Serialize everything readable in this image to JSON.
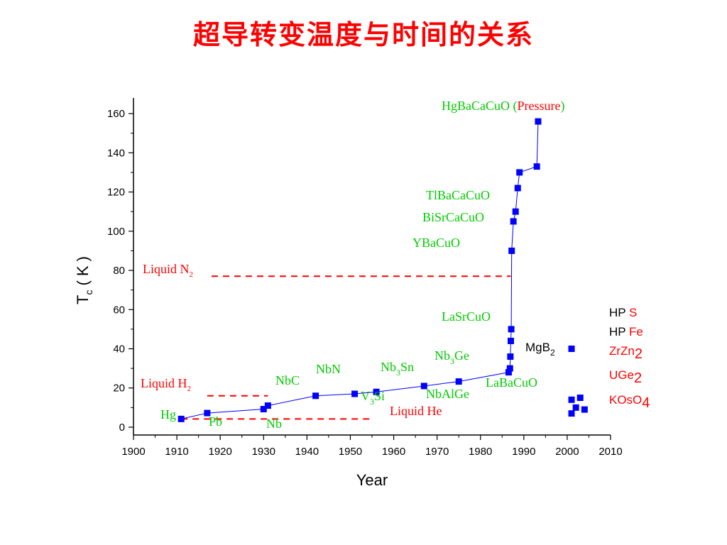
{
  "title": "超导转变温度与时间的关系",
  "colors": {
    "title": "#ff0000",
    "marker": "#0000ff",
    "line": "#0000ff",
    "material_label": "#00cc00",
    "liquid_label": "#ff0000",
    "reference_line": "#ff0000",
    "axis": "#000000"
  },
  "chart_data": {
    "type": "line",
    "xlabel": "Year",
    "ylabel": "T",
    "ylabel_sub": "c",
    "ylabel_unit": "( K )",
    "xlim": [
      1900,
      2010
    ],
    "ylim": [
      -4,
      168
    ],
    "xticks": [
      "1900",
      "1910",
      "1920",
      "1930",
      "1940",
      "1950",
      "1960",
      "1970",
      "1980",
      "1990",
      "2000",
      "2010"
    ],
    "yticks": [
      "0",
      "20",
      "40",
      "60",
      "80",
      "100",
      "120",
      "140",
      "160"
    ],
    "grid": false,
    "legend": "none",
    "series": [
      {
        "points": [
          {
            "x": 1911,
            "y": 4.2
          },
          {
            "x": 1917,
            "y": 7.2
          },
          {
            "x": 1930,
            "y": 9.2
          },
          {
            "x": 1931,
            "y": 11
          },
          {
            "x": 1942,
            "y": 16
          },
          {
            "x": 1951,
            "y": 17
          },
          {
            "x": 1956,
            "y": 18
          },
          {
            "x": 1967,
            "y": 21
          },
          {
            "x": 1975,
            "y": 23.3
          },
          {
            "x": 1986.5,
            "y": 28
          },
          {
            "x": 1986.8,
            "y": 30
          },
          {
            "x": 1986.9,
            "y": 36
          },
          {
            "x": 1987.0,
            "y": 44
          },
          {
            "x": 1987.1,
            "y": 50
          },
          {
            "x": 1987.2,
            "y": 90
          },
          {
            "x": 1987.6,
            "y": 105
          },
          {
            "x": 1988.1,
            "y": 110
          },
          {
            "x": 1988.6,
            "y": 122
          },
          {
            "x": 1989,
            "y": 130
          },
          {
            "x": 1993,
            "y": 133
          },
          {
            "x": 1993.3,
            "y": 156
          }
        ]
      }
    ],
    "extra_points": [
      {
        "x": 2001,
        "y": 40
      },
      {
        "x": 2001,
        "y": 14
      },
      {
        "x": 2002,
        "y": 10
      },
      {
        "x": 2003,
        "y": 15
      },
      {
        "x": 2004,
        "y": 9
      },
      {
        "x": 2001,
        "y": 7
      }
    ],
    "reference_lines": [
      {
        "y": 77,
        "x_from": 1918,
        "x_to": 1987,
        "label": "Liquid N",
        "sub": "2"
      },
      {
        "y": 16,
        "x_from": 1917,
        "x_to": 1931,
        "label": "Liquid H",
        "sub": "2"
      },
      {
        "y": 4.2,
        "x_from": 1911,
        "x_to": 1955,
        "label": "Liquid He",
        "sub": ""
      }
    ],
    "material_labels": [
      {
        "text": "HgBaCaCuO (",
        "accent": "Pressure",
        "tail": ")"
      },
      {
        "text": "TlBaCaCuO"
      },
      {
        "text": "BiSrCaCuO"
      },
      {
        "text": "YBaCuO"
      },
      {
        "text": "LaSrCuO"
      },
      {
        "text": "LaBaCuO"
      },
      {
        "text": "NbAlGe"
      },
      {
        "text": "Nb",
        "sub": "3",
        "tail": "Ge"
      },
      {
        "text": "Nb",
        "sub": "3",
        "tail": "Sn"
      },
      {
        "text": "V",
        "sub": "3",
        "tail": "Si"
      },
      {
        "text": "NbN"
      },
      {
        "text": "NbC"
      },
      {
        "text": "Hg"
      },
      {
        "text": "Pb"
      },
      {
        "text": "Nb"
      }
    ],
    "mgb2_label": {
      "text": "MgB",
      "sub": "2"
    },
    "recent_labels": [
      {
        "prefix": "HP ",
        "accent": "S"
      },
      {
        "prefix": "HP ",
        "accent": "Fe"
      },
      {
        "prefix": "",
        "accent": "ZrZn",
        "sub": "2"
      },
      {
        "prefix": "",
        "accent": "UGe",
        "sub": "2"
      },
      {
        "prefix": "",
        "accent": "KOsO",
        "sub": "4"
      }
    ]
  }
}
